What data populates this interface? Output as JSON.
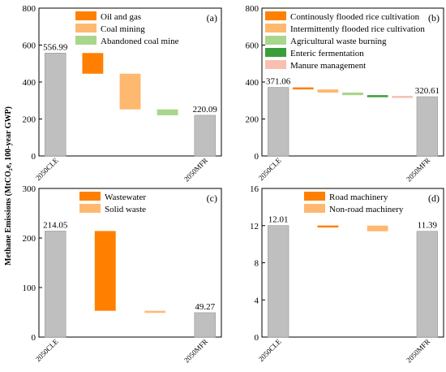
{
  "ylabel": "Methane Emissions (MtCO₂e, 100-year GWP)",
  "chart_data": [
    {
      "type": "bar",
      "panel_label": "(a)",
      "ylim": [
        0,
        800
      ],
      "yticks": [
        "0",
        "200",
        "400",
        "600",
        "800"
      ],
      "categories": [
        "2050CLE",
        "2050MFR"
      ],
      "start_value": 556.99,
      "end_value": 220.09,
      "start_label": "556.99",
      "end_label": "220.09",
      "steps": [
        {
          "name": "Oil and gas",
          "from": 556.99,
          "to": 445,
          "color": "#ff8000"
        },
        {
          "name": "Coal mining",
          "from": 445,
          "to": 252,
          "color": "#ffb870"
        },
        {
          "name": "Abandoned coal mine",
          "from": 252,
          "to": 220.09,
          "color": "#a8d68a"
        }
      ],
      "legend_position": "top-left"
    },
    {
      "type": "bar",
      "panel_label": "(b)",
      "ylim": [
        0,
        800
      ],
      "yticks": [
        "0",
        "200",
        "400",
        "600",
        "800"
      ],
      "categories": [
        "2050CLE",
        "2050MFR"
      ],
      "start_value": 371.06,
      "end_value": 320.61,
      "start_label": "371.06",
      "end_label": "320.61",
      "steps": [
        {
          "name": "Continously flooded rice cultivation",
          "from": 371.06,
          "to": 360,
          "color": "#ff8000"
        },
        {
          "name": "Intermittently flooded rice cultivation",
          "from": 360,
          "to": 343,
          "color": "#ffb870"
        },
        {
          "name": "Agricultural waste burning",
          "from": 343,
          "to": 329,
          "color": "#a8d68a"
        },
        {
          "name": "Enteric fermentation",
          "from": 329,
          "to": 325,
          "color": "#3a9e3a"
        },
        {
          "name": "Manure management",
          "from": 325,
          "to": 320.61,
          "color": "#f7c0b0"
        }
      ],
      "legend_position": "top-left"
    },
    {
      "type": "bar",
      "panel_label": "(c)",
      "ylim": [
        0,
        300
      ],
      "yticks": [
        "0",
        "100",
        "200",
        "300"
      ],
      "categories": [
        "2050CLE",
        "2050MFR"
      ],
      "start_value": 214.05,
      "end_value": 49.27,
      "start_label": "214.05",
      "end_label": "49.27",
      "steps": [
        {
          "name": "Wastewater",
          "from": 214.05,
          "to": 53,
          "color": "#ff8000"
        },
        {
          "name": "Solid waste",
          "from": 53,
          "to": 49.27,
          "color": "#ffb870"
        }
      ],
      "legend_position": "top-center"
    },
    {
      "type": "bar",
      "panel_label": "(d)",
      "ylim": [
        0,
        16
      ],
      "yticks": [
        "0",
        "4",
        "8",
        "12",
        "16"
      ],
      "categories": [
        "2050CLE",
        "2050MFR"
      ],
      "start_value": 12.01,
      "end_value": 11.39,
      "start_label": "12.01",
      "end_label": "11.39",
      "steps": [
        {
          "name": "Road machinery",
          "from": 12.01,
          "to": 12.0,
          "color": "#ff8000"
        },
        {
          "name": "Non-road machinery",
          "from": 12.0,
          "to": 11.39,
          "color": "#ffb870"
        }
      ],
      "legend_position": "top-center"
    }
  ]
}
